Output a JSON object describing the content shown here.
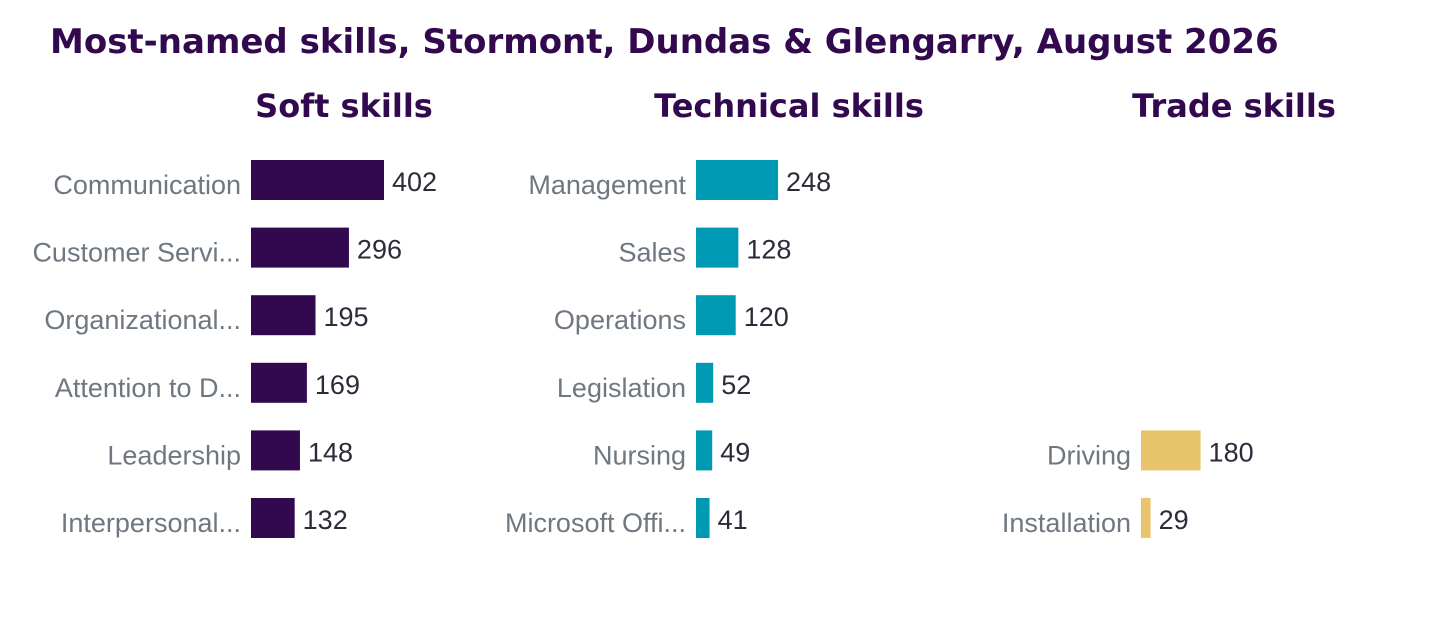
{
  "chart_data": {
    "type": "bar",
    "orientation": "horizontal",
    "title": "Most-named skills, Stormont, Dundas & Glengarry, August 2026",
    "panels": [
      {
        "title": "Soft skills",
        "color": "#32084f",
        "categories": [
          "Communication",
          "Customer Servi...",
          "Organizational...",
          "Attention to D...",
          "Leadership",
          "Interpersonal..."
        ],
        "values": [
          402,
          296,
          195,
          169,
          148,
          132
        ]
      },
      {
        "title": "Technical skills",
        "color": "#0099b4",
        "categories": [
          "Management",
          "Sales",
          "Operations",
          "Legislation",
          "Nursing",
          "Microsoft Offi..."
        ],
        "values": [
          248,
          128,
          120,
          52,
          49,
          41
        ]
      },
      {
        "title": "Trade skills",
        "color": "#e8c46c",
        "categories": [
          "",
          "",
          "",
          "",
          "Driving",
          "Installation"
        ],
        "values": [
          null,
          null,
          null,
          null,
          180,
          29
        ]
      }
    ],
    "grid": false,
    "legend": "none"
  }
}
